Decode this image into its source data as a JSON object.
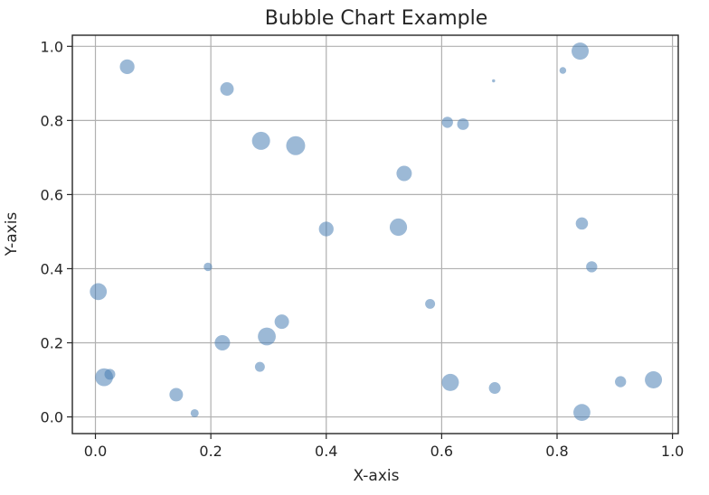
{
  "chart_data": {
    "type": "scatter",
    "title": "Bubble Chart Example",
    "xlabel": "X-axis",
    "ylabel": "Y-axis",
    "xlim": [
      -0.04,
      1.01
    ],
    "ylim": [
      -0.045,
      1.03
    ],
    "xticks": [
      0.0,
      0.2,
      0.4,
      0.6,
      0.8,
      1.0
    ],
    "xtick_labels": [
      "0.0",
      "0.2",
      "0.4",
      "0.6",
      "0.8",
      "1.0"
    ],
    "yticks": [
      0.0,
      0.2,
      0.4,
      0.6,
      0.8,
      1.0
    ],
    "ytick_labels": [
      "0.0",
      "0.2",
      "0.4",
      "0.6",
      "0.8",
      "1.0"
    ],
    "grid": true,
    "color": "#4a7fb5",
    "opacity": 0.55,
    "points": [
      {
        "x": 0.055,
        "y": 0.945,
        "size": 66
      },
      {
        "x": 0.228,
        "y": 0.885,
        "size": 56
      },
      {
        "x": 0.287,
        "y": 0.745,
        "size": 100
      },
      {
        "x": 0.347,
        "y": 0.732,
        "size": 110
      },
      {
        "x": 0.535,
        "y": 0.657,
        "size": 72
      },
      {
        "x": 0.61,
        "y": 0.795,
        "size": 38
      },
      {
        "x": 0.637,
        "y": 0.79,
        "size": 42
      },
      {
        "x": 0.69,
        "y": 0.907,
        "size": 3
      },
      {
        "x": 0.81,
        "y": 0.935,
        "size": 14
      },
      {
        "x": 0.84,
        "y": 0.987,
        "size": 90
      },
      {
        "x": 0.4,
        "y": 0.507,
        "size": 66
      },
      {
        "x": 0.525,
        "y": 0.512,
        "size": 92
      },
      {
        "x": 0.843,
        "y": 0.522,
        "size": 46
      },
      {
        "x": 0.86,
        "y": 0.405,
        "size": 38
      },
      {
        "x": 0.195,
        "y": 0.405,
        "size": 22
      },
      {
        "x": 0.005,
        "y": 0.338,
        "size": 88
      },
      {
        "x": 0.58,
        "y": 0.305,
        "size": 30
      },
      {
        "x": 0.323,
        "y": 0.257,
        "size": 64
      },
      {
        "x": 0.297,
        "y": 0.217,
        "size": 98
      },
      {
        "x": 0.22,
        "y": 0.2,
        "size": 72
      },
      {
        "x": 0.285,
        "y": 0.135,
        "size": 30
      },
      {
        "x": 0.015,
        "y": 0.107,
        "size": 98
      },
      {
        "x": 0.025,
        "y": 0.115,
        "size": 36
      },
      {
        "x": 0.14,
        "y": 0.06,
        "size": 56
      },
      {
        "x": 0.172,
        "y": 0.01,
        "size": 20
      },
      {
        "x": 0.615,
        "y": 0.093,
        "size": 90
      },
      {
        "x": 0.692,
        "y": 0.078,
        "size": 42
      },
      {
        "x": 0.843,
        "y": 0.012,
        "size": 88
      },
      {
        "x": 0.91,
        "y": 0.095,
        "size": 38
      },
      {
        "x": 0.967,
        "y": 0.1,
        "size": 90
      }
    ]
  }
}
